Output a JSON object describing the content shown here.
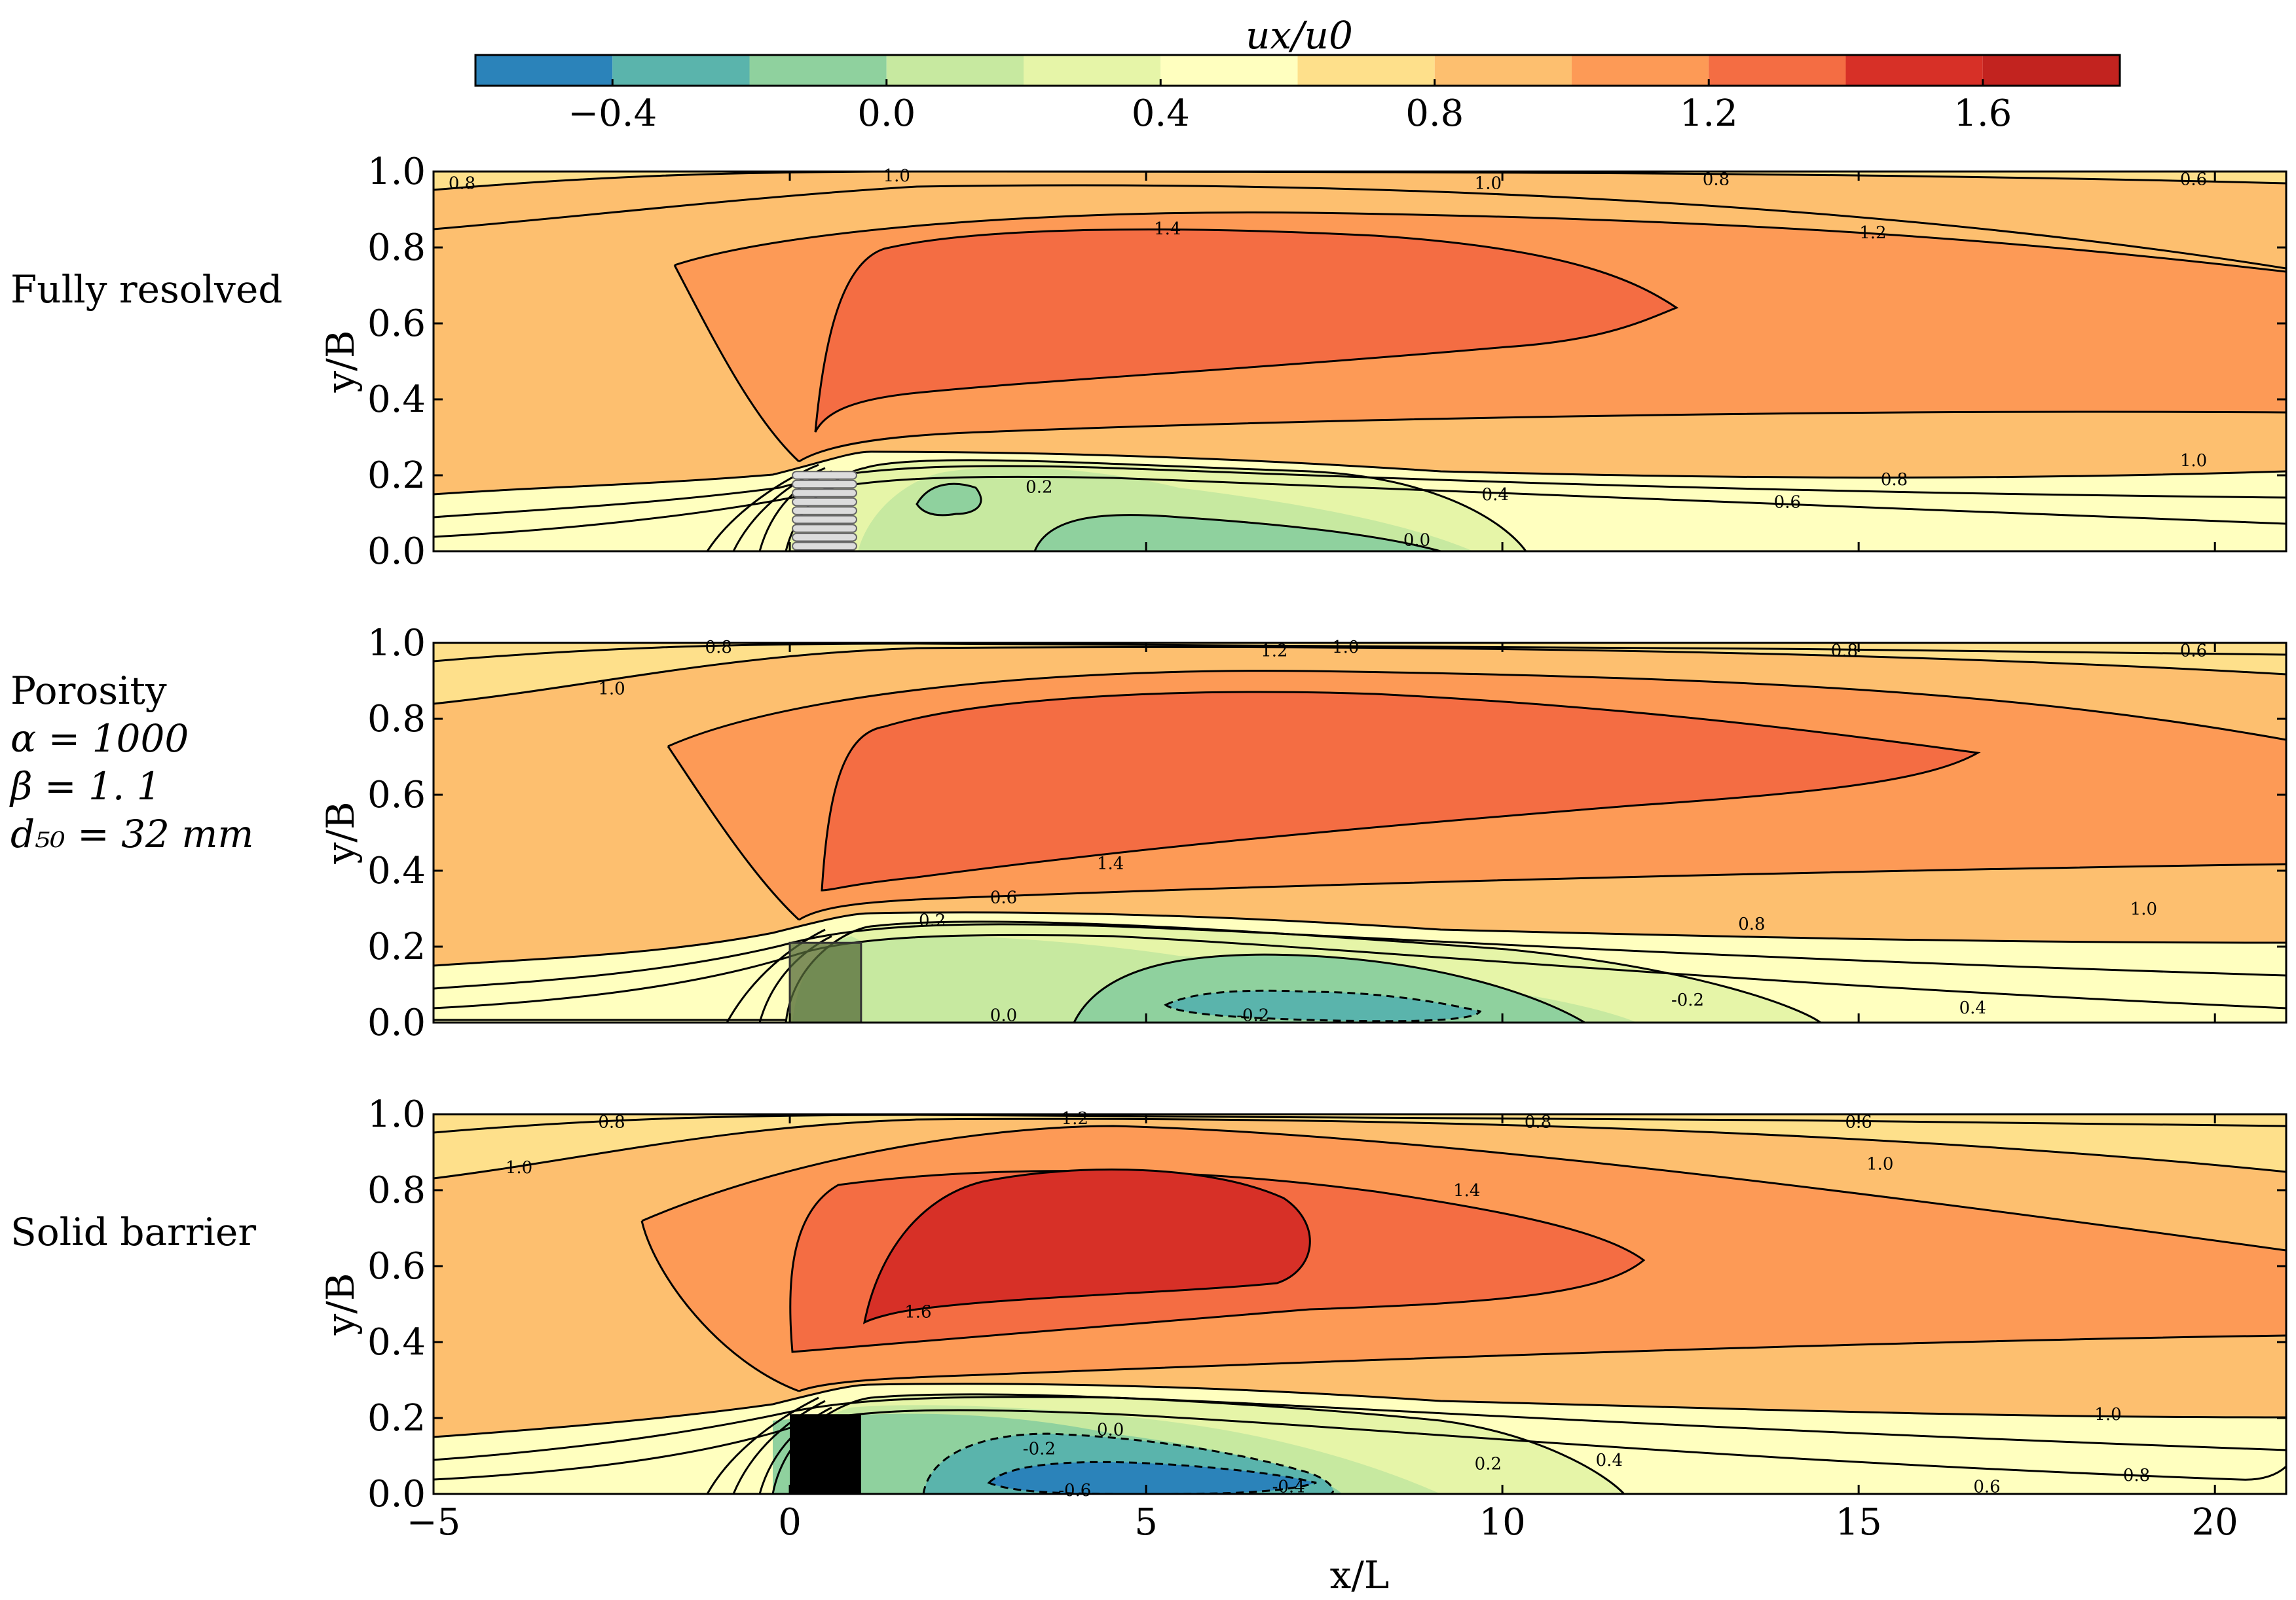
{
  "chart_data": {
    "type": "contour",
    "colorbar": {
      "label": "u_x/u_0",
      "label_display": "ux/u0",
      "levels": [
        -0.6,
        -0.4,
        -0.2,
        0.0,
        0.2,
        0.4,
        0.6,
        0.8,
        1.0,
        1.2,
        1.4,
        1.6,
        1.8
      ],
      "colors": [
        "#2b83ba",
        "#5ab4ac",
        "#8fd19e",
        "#c7e9a0",
        "#e6f5a8",
        "#ffffbf",
        "#fee08b",
        "#fdbf6f",
        "#fd9a56",
        "#f46d43",
        "#d73027",
        "#c2231f"
      ],
      "ticks": [
        "−0.4",
        "0.0",
        "0.4",
        "0.8",
        "1.2",
        "1.6"
      ],
      "tick_values": [
        -0.4,
        0.0,
        0.4,
        0.8,
        1.2,
        1.6
      ]
    },
    "xlabel": "x/L",
    "ylabel": "y/B",
    "xlim": [
      -5,
      21
    ],
    "ylim": [
      0,
      1
    ],
    "xticks": [
      -5,
      0,
      5,
      10,
      15,
      20
    ],
    "xtick_labels": [
      "−5",
      "0",
      "5",
      "10",
      "15",
      "20"
    ],
    "yticks": [
      0.0,
      0.2,
      0.4,
      0.6,
      0.8,
      1.0
    ],
    "ytick_labels": [
      "0.0",
      "0.2",
      "0.4",
      "0.6",
      "0.8",
      "1.0"
    ],
    "panels": [
      {
        "title_lines": [
          "Fully resolved"
        ],
        "obstacle": "fully-resolved",
        "obstacle_x": [
          0,
          1
        ],
        "obstacle_y": [
          0,
          0.21
        ],
        "contour_labels": [
          {
            "text": "0.8",
            "x": -4.6,
            "y": 0.97
          },
          {
            "text": "1.0",
            "x": 1.5,
            "y": 0.99
          },
          {
            "text": "1.0",
            "x": 9.8,
            "y": 0.97
          },
          {
            "text": "0.8",
            "x": 13.0,
            "y": 0.98
          },
          {
            "text": "0.6",
            "x": 19.7,
            "y": 0.98
          },
          {
            "text": "1.4",
            "x": 5.3,
            "y": 0.85
          },
          {
            "text": "1.2",
            "x": 15.2,
            "y": 0.84
          },
          {
            "text": "1.0",
            "x": 19.7,
            "y": 0.24
          },
          {
            "text": "0.8",
            "x": 15.5,
            "y": 0.19
          },
          {
            "text": "0.6",
            "x": 14.0,
            "y": 0.13
          },
          {
            "text": "0.4",
            "x": 9.9,
            "y": 0.15
          },
          {
            "text": "0.2",
            "x": 3.5,
            "y": 0.17
          },
          {
            "text": "0.0",
            "x": 8.8,
            "y": 0.03
          }
        ]
      },
      {
        "title_lines": [
          "Porosity",
          "α = 1000",
          "β = 1. 1",
          "d₅₀ = 32 mm"
        ],
        "obstacle": "porous",
        "obstacle_x": [
          0,
          1
        ],
        "obstacle_y": [
          0,
          0.21
        ],
        "contour_labels": [
          {
            "text": "0.8",
            "x": -1.0,
            "y": 0.99
          },
          {
            "text": "1.2",
            "x": 6.8,
            "y": 0.98
          },
          {
            "text": "1.0",
            "x": 7.8,
            "y": 0.99
          },
          {
            "text": "0.8",
            "x": 14.8,
            "y": 0.98
          },
          {
            "text": "0.6",
            "x": 19.7,
            "y": 0.98
          },
          {
            "text": "1.0",
            "x": -2.5,
            "y": 0.88
          },
          {
            "text": "1.4",
            "x": 4.5,
            "y": 0.42
          },
          {
            "text": "0.6",
            "x": 3.0,
            "y": 0.33
          },
          {
            "text": "0.2",
            "x": 2.0,
            "y": 0.27
          },
          {
            "text": "0.8",
            "x": 13.5,
            "y": 0.26
          },
          {
            "text": "1.0",
            "x": 19.0,
            "y": 0.3
          },
          {
            "text": "0.4",
            "x": 16.6,
            "y": 0.04
          },
          {
            "text": "0.0",
            "x": 3.0,
            "y": 0.02
          },
          {
            "text": "-0.2",
            "x": 12.6,
            "y": 0.06
          },
          {
            "text": "-0.2",
            "x": 6.5,
            "y": 0.02
          }
        ]
      },
      {
        "title_lines": [
          "Solid barrier"
        ],
        "obstacle": "solid",
        "obstacle_x": [
          0,
          1
        ],
        "obstacle_y": [
          0,
          0.21
        ],
        "contour_labels": [
          {
            "text": "0.8",
            "x": -2.5,
            "y": 0.98
          },
          {
            "text": "1.2",
            "x": 4.0,
            "y": 0.99
          },
          {
            "text": "0.8",
            "x": 10.5,
            "y": 0.98
          },
          {
            "text": "0.6",
            "x": 15.0,
            "y": 0.98
          },
          {
            "text": "1.0",
            "x": -3.8,
            "y": 0.86
          },
          {
            "text": "1.0",
            "x": 15.3,
            "y": 0.87
          },
          {
            "text": "1.4",
            "x": 9.5,
            "y": 0.8
          },
          {
            "text": "1.6",
            "x": 1.8,
            "y": 0.48
          },
          {
            "text": "0.0",
            "x": 4.5,
            "y": 0.17
          },
          {
            "text": "-0.2",
            "x": 3.5,
            "y": 0.12
          },
          {
            "text": "0.2",
            "x": 9.8,
            "y": 0.08
          },
          {
            "text": "0.4",
            "x": 11.5,
            "y": 0.09
          },
          {
            "text": "1.0",
            "x": 18.5,
            "y": 0.21
          },
          {
            "text": "0.8",
            "x": 18.9,
            "y": 0.05
          },
          {
            "text": "0.6",
            "x": 16.8,
            "y": 0.02
          },
          {
            "text": "-0.6",
            "x": 4.0,
            "y": 0.01
          },
          {
            "text": "-0.4",
            "x": 7.0,
            "y": 0.02
          }
        ]
      }
    ]
  }
}
